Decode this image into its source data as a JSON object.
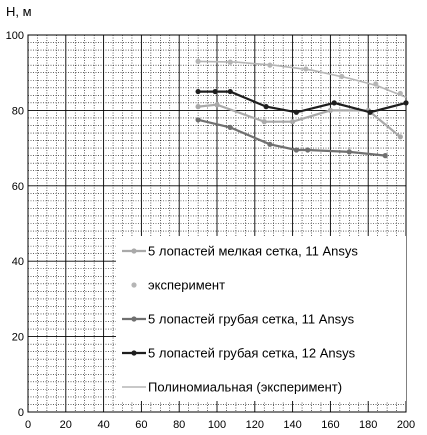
{
  "chart_data": {
    "type": "line",
    "title": "",
    "ylabel": "H, м",
    "xlabel": "",
    "xlim": [
      0,
      200
    ],
    "ylim": [
      0,
      100
    ],
    "x_ticks": [
      0,
      20,
      40,
      60,
      80,
      100,
      120,
      140,
      160,
      180,
      200
    ],
    "y_ticks": [
      0,
      20,
      40,
      60,
      80,
      100
    ],
    "grid": true,
    "legend_position": "bottom-right, inside plot",
    "series": [
      {
        "name": "5 лопастей мелкая сетка, 11 Ansys",
        "color": "#a9a9a9",
        "style": "line-markers",
        "x": [
          90,
          100,
          125,
          140,
          160,
          180,
          197
        ],
        "y": [
          81,
          81.5,
          77,
          77,
          80,
          80,
          73
        ]
      },
      {
        "name": "эксперимент",
        "color": "#b5b5b5",
        "style": "markers",
        "x": [
          90,
          107,
          128,
          147,
          166,
          184,
          197
        ],
        "y": [
          93,
          92.8,
          92,
          91,
          89,
          87,
          84.5
        ]
      },
      {
        "name": "5 лопастей грубая  сетка, 11 Ansys",
        "color": "#707070",
        "style": "line-markers",
        "x": [
          90,
          107,
          128,
          142,
          148,
          170,
          189
        ],
        "y": [
          77.5,
          75.5,
          71,
          69.5,
          69.5,
          69,
          68
        ]
      },
      {
        "name": "5 лопастей грубая сетка, 12 Ansys",
        "color": "#1e1e1e",
        "style": "line-markers",
        "x": [
          90,
          99,
          107,
          126,
          142,
          162,
          181,
          200
        ],
        "y": [
          85,
          85,
          85,
          81,
          79.5,
          82,
          79.5,
          82
        ]
      },
      {
        "name": "Полиномиальная (эксперимент)",
        "color": "#b5b5b5",
        "style": "line",
        "x": [
          90,
          110,
          130,
          150,
          170,
          185,
          200
        ],
        "y": [
          93,
          92.8,
          92,
          90.7,
          88.5,
          86.5,
          83.5
        ]
      }
    ]
  }
}
